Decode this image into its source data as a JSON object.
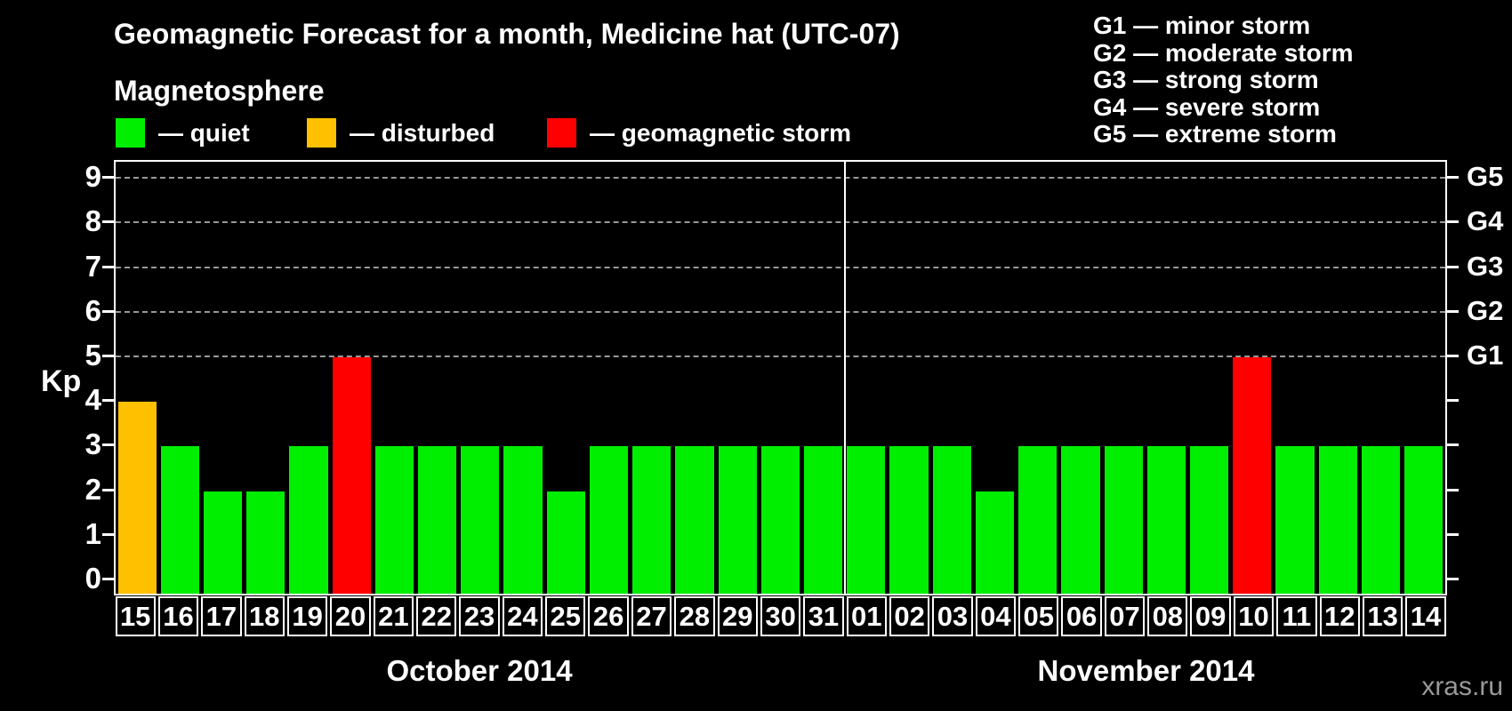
{
  "watermark": "xras.ru",
  "legend": {
    "heading": "Magnetosphere",
    "items": [
      {
        "key": "quiet",
        "label": "— quiet",
        "color": "#00ee00"
      },
      {
        "key": "disturbed",
        "label": "— disturbed",
        "color": "#ffc000"
      },
      {
        "key": "storm",
        "label": "— geomagnetic storm",
        "color": "#ff0000"
      }
    ]
  },
  "g_scale_legend": [
    "G1 — minor storm",
    "G2 — moderate storm",
    "G3 — strong storm",
    "G4 — severe storm",
    "G5 — extreme storm"
  ],
  "chart_data": {
    "type": "bar",
    "title": "Geomagnetic Forecast for a month, Medicine hat (UTC-07)",
    "ylabel": "Kp",
    "ylim": [
      0,
      9.35
    ],
    "yticks": [
      0,
      1,
      2,
      3,
      4,
      5,
      6,
      7,
      8,
      9
    ],
    "gridlines_at": [
      5,
      6,
      7,
      8,
      9
    ],
    "grid_style": "horizontal dashed, Kp 5-9 only",
    "right_axis": [
      {
        "kp": 5,
        "label": "G1"
      },
      {
        "kp": 6,
        "label": "G2"
      },
      {
        "kp": 7,
        "label": "G3"
      },
      {
        "kp": 8,
        "label": "G4"
      },
      {
        "kp": 9,
        "label": "G5"
      }
    ],
    "colors": {
      "quiet": "#00ee00",
      "disturbed": "#ffc000",
      "storm": "#ff0000"
    },
    "groups": [
      {
        "label": "October 2014",
        "days": [
          {
            "day": "15",
            "kp": 4,
            "level": "disturbed"
          },
          {
            "day": "16",
            "kp": 3,
            "level": "quiet"
          },
          {
            "day": "17",
            "kp": 2,
            "level": "quiet"
          },
          {
            "day": "18",
            "kp": 2,
            "level": "quiet"
          },
          {
            "day": "19",
            "kp": 3,
            "level": "quiet"
          },
          {
            "day": "20",
            "kp": 5,
            "level": "storm"
          },
          {
            "day": "21",
            "kp": 3,
            "level": "quiet"
          },
          {
            "day": "22",
            "kp": 3,
            "level": "quiet"
          },
          {
            "day": "23",
            "kp": 3,
            "level": "quiet"
          },
          {
            "day": "24",
            "kp": 3,
            "level": "quiet"
          },
          {
            "day": "25",
            "kp": 2,
            "level": "quiet"
          },
          {
            "day": "26",
            "kp": 3,
            "level": "quiet"
          },
          {
            "day": "27",
            "kp": 3,
            "level": "quiet"
          },
          {
            "day": "28",
            "kp": 3,
            "level": "quiet"
          },
          {
            "day": "29",
            "kp": 3,
            "level": "quiet"
          },
          {
            "day": "30",
            "kp": 3,
            "level": "quiet"
          },
          {
            "day": "31",
            "kp": 3,
            "level": "quiet"
          }
        ]
      },
      {
        "label": "November 2014",
        "days": [
          {
            "day": "01",
            "kp": 3,
            "level": "quiet"
          },
          {
            "day": "02",
            "kp": 3,
            "level": "quiet"
          },
          {
            "day": "03",
            "kp": 3,
            "level": "quiet"
          },
          {
            "day": "04",
            "kp": 2,
            "level": "quiet"
          },
          {
            "day": "05",
            "kp": 3,
            "level": "quiet"
          },
          {
            "day": "06",
            "kp": 3,
            "level": "quiet"
          },
          {
            "day": "07",
            "kp": 3,
            "level": "quiet"
          },
          {
            "day": "08",
            "kp": 3,
            "level": "quiet"
          },
          {
            "day": "09",
            "kp": 3,
            "level": "quiet"
          },
          {
            "day": "10",
            "kp": 5,
            "level": "storm"
          },
          {
            "day": "11",
            "kp": 3,
            "level": "quiet"
          },
          {
            "day": "12",
            "kp": 3,
            "level": "quiet"
          },
          {
            "day": "13",
            "kp": 3,
            "level": "quiet"
          },
          {
            "day": "14",
            "kp": 3,
            "level": "quiet"
          }
        ]
      }
    ]
  }
}
